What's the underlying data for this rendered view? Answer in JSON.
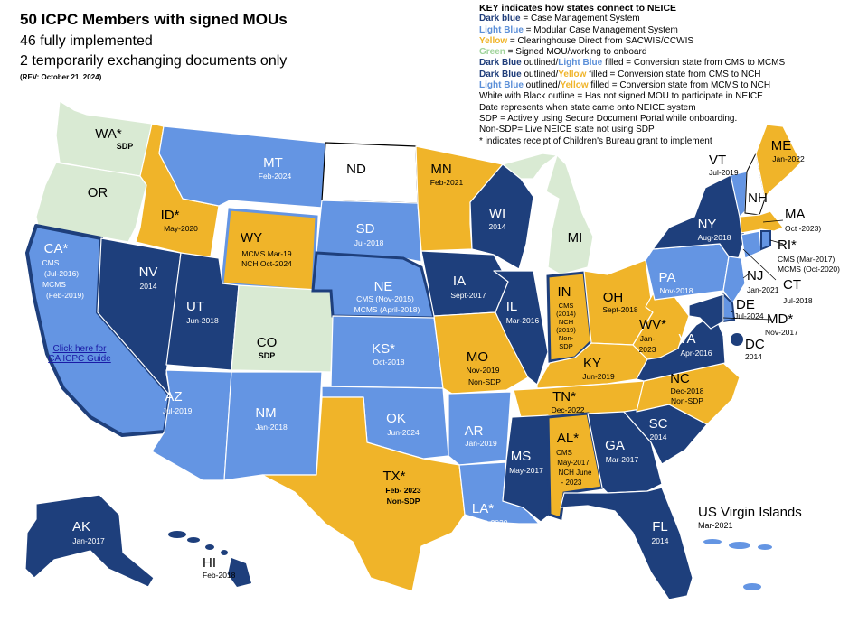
{
  "header": {
    "title": "50 ICPC Members with signed MOUs",
    "line2": "46 fully implemented",
    "line3": "2 temporarily exchanging documents only",
    "rev": "(REV: October 21, 2024)"
  },
  "key": {
    "title": "KEY indicates how states connect to NEICE",
    "colors": {
      "dark_blue": "#1e3f7c",
      "light_blue": "#6495e3",
      "yellow": "#f0b429",
      "green": "#d9ead3",
      "white": "#ffffff"
    },
    "l1_a": "Dark blue",
    "l1_b": " = Case Management System",
    "l2_a": "Light Blue",
    "l2_b": " = Modular Case Management System",
    "l3_a": "Yellow",
    "l3_b": " = Clearinghouse Direct from SACWIS/CCWIS",
    "l4_a": "Green",
    "l4_b": " = Signed MOU/working to onboard",
    "l5_a": "Dark Blue",
    "l5_b": " outlined/",
    "l5_c": "Light Blue",
    "l5_d": " filled = Conversion state from CMS to MCMS",
    "l6_a": "Dark Blue",
    "l6_b": " outlined/",
    "l6_c": "Yellow",
    "l6_d": " filled = Conversion state from CMS to NCH",
    "l7_a": "Light Blue",
    "l7_b": " outlined/",
    "l7_c": "Yellow",
    "l7_d": " filled = Conversion state from MCMS to NCH",
    "l8": "White with Black outline = Has not  signed MOU to participate in NEICE",
    "l9": "Date represents when state came onto NEICE system",
    "l10": "SDP = Actively using Secure Document Portal while onboarding.",
    "l11": "Non-SDP= Live NEICE state not using SDP",
    "l12": "* indicates receipt of Children's Bureau grant to implement"
  },
  "ca_link": "Click here for CA ICPC Guide",
  "states": {
    "wa": {
      "ab": "WA*",
      "sdp": "SDP"
    },
    "or": {
      "ab": "OR"
    },
    "ca": {
      "ab": "CA*",
      "l1": "CMS",
      "l2": "(Jul-2016)",
      "l3": "MCMS",
      "l4": "(Feb-2019)"
    },
    "id": {
      "ab": "ID*",
      "date": "May-2020"
    },
    "nv": {
      "ab": "NV",
      "date": "2014"
    },
    "mt": {
      "ab": "MT",
      "date": "Feb-2024"
    },
    "wy": {
      "ab": "WY",
      "l1": "MCMS Mar-19",
      "l2": "NCH Oct-2024"
    },
    "ut": {
      "ab": "UT",
      "date": "Jun-2018"
    },
    "co": {
      "ab": "CO",
      "sdp": "SDP"
    },
    "az": {
      "ab": "AZ",
      "date": "Jul-2019"
    },
    "nm": {
      "ab": "NM",
      "date": "Jan-2018"
    },
    "nd": {
      "ab": "ND"
    },
    "sd": {
      "ab": "SD",
      "date": "Jul-2018"
    },
    "ne": {
      "ab": "NE",
      "l1": "CMS (Nov-2015)",
      "l2": "MCMS (April-2018)"
    },
    "ks": {
      "ab": "KS*",
      "date": "Oct-2018"
    },
    "ok": {
      "ab": "OK",
      "date": "Jun-2024"
    },
    "tx": {
      "ab": "TX*",
      "l1": "Feb- 2023",
      "l2": "Non-SDP"
    },
    "mn": {
      "ab": "MN",
      "date": "Feb-2021"
    },
    "ia": {
      "ab": "IA",
      "date": "Sept-2017"
    },
    "mo": {
      "ab": "MO",
      "l1": "Nov-2019",
      "l2": "Non-SDP"
    },
    "ar": {
      "ab": "AR",
      "date": "Jan-2019"
    },
    "la": {
      "ab": "LA*",
      "date": "Oct-2020"
    },
    "wi": {
      "ab": "WI",
      "date": "2014"
    },
    "il": {
      "ab": "IL",
      "date": "Mar-2016"
    },
    "mi": {
      "ab": "MI"
    },
    "in": {
      "ab": "IN",
      "l1": "CMS",
      "l2": "(2014)",
      "l3": "NCH",
      "l4": "(2019)",
      "l5": "Non-",
      "l6": "SDP"
    },
    "oh": {
      "ab": "OH",
      "date": "Sept-2018"
    },
    "ky": {
      "ab": "KY",
      "date": "Jun-2019"
    },
    "tn": {
      "ab": "TN*",
      "date": "Dec-2022"
    },
    "ms": {
      "ab": "MS",
      "date": "May-2017"
    },
    "al": {
      "ab": "AL*",
      "l1": "CMS",
      "l2": "May-2017",
      "l3": "NCH June",
      "l4": "- 2023"
    },
    "ga": {
      "ab": "GA",
      "date": "Mar-2017"
    },
    "fl": {
      "ab": "FL",
      "date": "2014"
    },
    "sc": {
      "ab": "SC",
      "date": "2014"
    },
    "nc": {
      "ab": "NC",
      "l1": "Dec-2018",
      "l2": "Non-SDP"
    },
    "va": {
      "ab": "VA",
      "date": "Apr-2016"
    },
    "wv": {
      "ab": "WV*",
      "l1": "Jan-",
      "l2": "2023"
    },
    "pa": {
      "ab": "PA",
      "date": "Nov-2018"
    },
    "ny": {
      "ab": "NY",
      "date": "Aug-2018"
    },
    "vt": {
      "ab": "VT",
      "date": "Jul-2019"
    },
    "nh": {
      "ab": "NH"
    },
    "me": {
      "ab": "ME",
      "date": "Jan-2022"
    },
    "ma": {
      "ab": "MA",
      "date": "Oct -2023)"
    },
    "ri": {
      "ab": "RI*",
      "l1": "CMS (Mar-2017)",
      "l2": "MCMS (Oct-2020)"
    },
    "ct": {
      "ab": "CT",
      "date": "Jul-2018"
    },
    "nj": {
      "ab": "NJ",
      "date": "Jan-2021"
    },
    "de": {
      "ab": "DE",
      "date": "Jul-2024"
    },
    "md": {
      "ab": "MD*",
      "date": "Nov-2017"
    },
    "dc": {
      "ab": "DC",
      "date": "2014"
    },
    "ak": {
      "ab": "AK",
      "date": "Jan-2017"
    },
    "hi": {
      "ab": "HI",
      "date": "Feb-2018"
    }
  },
  "virgin_islands": {
    "title": "US Virgin Islands",
    "date": "Mar-2021"
  }
}
